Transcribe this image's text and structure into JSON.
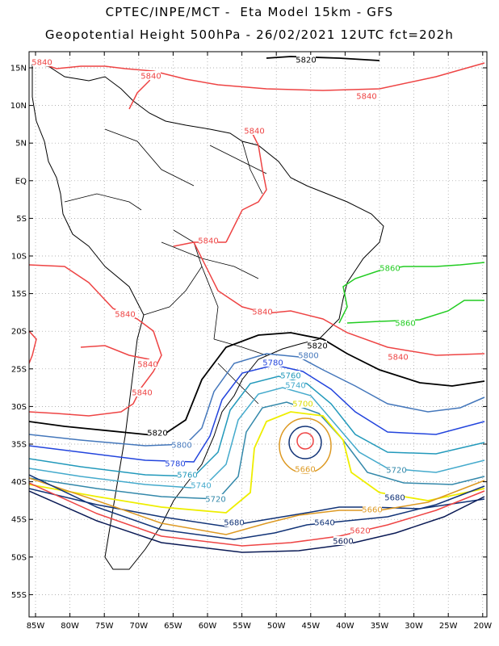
{
  "title_line1": "CPTEC/INPE/MCT -  Eta Model 15km - GFS",
  "title_line2": "Geopotential Height 500hPa - 26/02/2021 12UTC fct=202h",
  "lat_labels": [
    "15N",
    "10N",
    "5N",
    "EQ",
    "5S",
    "10S",
    "15S",
    "20S",
    "25S",
    "30S",
    "35S",
    "40S",
    "45S",
    "50S",
    "55S"
  ],
  "lon_labels": [
    "85W",
    "80W",
    "75W",
    "70W",
    "65W",
    "60W",
    "55W",
    "50W",
    "45W",
    "40W",
    "35W",
    "30W",
    "25W",
    "20W"
  ],
  "contour_colors": {
    "5860": "#22cc22",
    "5840": "#ee4444",
    "5820": "#000000",
    "5800": "#4477bb",
    "5780": "#2244dd",
    "5760": "#2299bb",
    "5740": "#44aacc",
    "5720": "#3388aa",
    "5700": "#eeee00",
    "5680": "#113377",
    "5660": "#dd9922",
    "5640": "#113377",
    "5620": "#ee4444",
    "5600": "#0a1a55"
  },
  "contour_labels": [
    {
      "text": "5840",
      "color": "#ee4444"
    },
    {
      "text": "5840",
      "color": "#ee4444"
    },
    {
      "text": "5840",
      "color": "#ee4444"
    },
    {
      "text": "5840",
      "color": "#ee4444"
    },
    {
      "text": "5840",
      "color": "#ee4444"
    },
    {
      "text": "5840",
      "color": "#ee4444"
    },
    {
      "text": "5840",
      "color": "#ee4444"
    },
    {
      "text": "5840",
      "color": "#ee4444"
    },
    {
      "text": "5840",
      "color": "#ee4444"
    },
    {
      "text": "5840",
      "color": "#ee4444"
    },
    {
      "text": "5820",
      "color": "#000000"
    },
    {
      "text": "5820",
      "color": "#000000"
    },
    {
      "text": "5820",
      "color": "#000000"
    },
    {
      "text": "5860",
      "color": "#22cc22"
    },
    {
      "text": "5860",
      "color": "#22cc22"
    },
    {
      "text": "5800",
      "color": "#4477bb"
    },
    {
      "text": "5800",
      "color": "#4477bb"
    },
    {
      "text": "5780",
      "color": "#2244dd"
    },
    {
      "text": "5780",
      "color": "#2244dd"
    },
    {
      "text": "5760",
      "color": "#2299bb"
    },
    {
      "text": "5760",
      "color": "#2299bb"
    },
    {
      "text": "5740",
      "color": "#44aacc"
    },
    {
      "text": "5740",
      "color": "#44aacc"
    },
    {
      "text": "5720",
      "color": "#3388aa"
    },
    {
      "text": "5720",
      "color": "#3388aa"
    },
    {
      "text": "5700",
      "color": "#dddd00"
    },
    {
      "text": "5680",
      "color": "#113377"
    },
    {
      "text": "5680",
      "color": "#113377"
    },
    {
      "text": "5660",
      "color": "#dd9922"
    },
    {
      "text": "5660",
      "color": "#dd9922"
    },
    {
      "text": "5640",
      "color": "#113377"
    },
    {
      "text": "5620",
      "color": "#ee4444"
    },
    {
      "text": "5600",
      "color": "#0a1a55"
    }
  ]
}
